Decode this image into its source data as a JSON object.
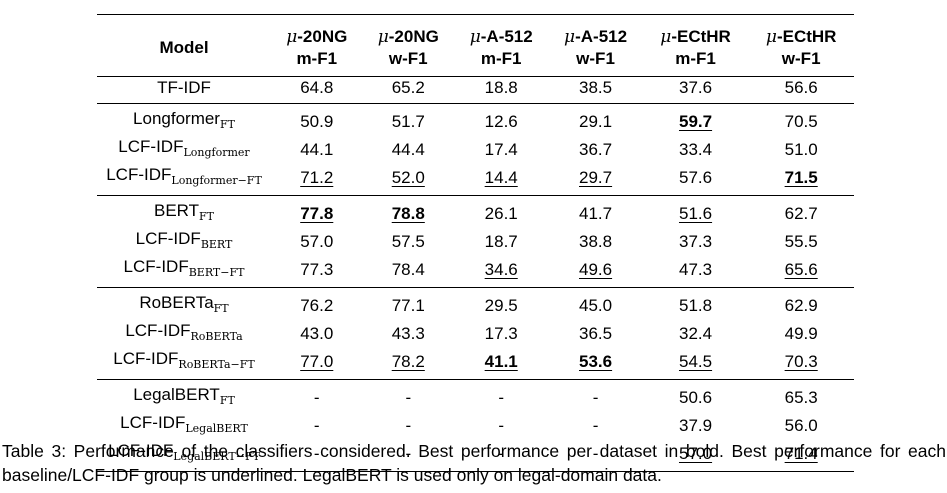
{
  "table": {
    "model_header": "Model",
    "columns": [
      {
        "mu": "μ",
        "dataset": "-20NG",
        "metric": "m-F1"
      },
      {
        "mu": "μ",
        "dataset": "-20NG",
        "metric": "w-F1"
      },
      {
        "mu": "μ",
        "dataset": "-A-512",
        "metric": "m-F1"
      },
      {
        "mu": "μ",
        "dataset": "-A-512",
        "metric": "w-F1"
      },
      {
        "mu": "μ",
        "dataset": "-ECtHR",
        "metric": "m-F1"
      },
      {
        "mu": "μ",
        "dataset": "-ECtHR",
        "metric": "w-F1"
      }
    ],
    "rows": [
      {
        "name": "TF-IDF",
        "sub": "",
        "values": [
          "64.8",
          "65.2",
          "18.8",
          "38.5",
          "37.6",
          "56.6"
        ]
      },
      {
        "name": "Longformer",
        "sub": "FT",
        "values": [
          "50.9",
          "51.7",
          "12.6",
          "29.1",
          "59.7",
          "70.5"
        ]
      },
      {
        "name": "LCF-IDF",
        "sub": "Longformer",
        "values": [
          "44.1",
          "44.4",
          "17.4",
          "36.7",
          "33.4",
          "51.0"
        ]
      },
      {
        "name": "LCF-IDF",
        "sub": "Longformer−FT",
        "values": [
          "71.2",
          "52.0",
          "14.4",
          "29.7",
          "57.6",
          "71.5"
        ]
      },
      {
        "name": "BERT",
        "sub": "FT",
        "values": [
          "77.8",
          "78.8",
          "26.1",
          "41.7",
          "51.6",
          "62.7"
        ]
      },
      {
        "name": "LCF-IDF",
        "sub": "BERT",
        "values": [
          "57.0",
          "57.5",
          "18.7",
          "38.8",
          "37.3",
          "55.5"
        ]
      },
      {
        "name": "LCF-IDF",
        "sub": "BERT−FT",
        "values": [
          "77.3",
          "78.4",
          "34.6",
          "49.6",
          "47.3",
          "65.6"
        ]
      },
      {
        "name": "RoBERTa",
        "sub": "FT",
        "values": [
          "76.2",
          "77.1",
          "29.5",
          "45.0",
          "51.8",
          "62.9"
        ]
      },
      {
        "name": "LCF-IDF",
        "sub": "RoBERTa",
        "values": [
          "43.0",
          "43.3",
          "17.3",
          "36.5",
          "32.4",
          "49.9"
        ]
      },
      {
        "name": "LCF-IDF",
        "sub": "RoBERTa−FT",
        "values": [
          "77.0",
          "78.2",
          "41.1",
          "53.6",
          "54.5",
          "70.3"
        ]
      },
      {
        "name": "LegalBERT",
        "sub": "FT",
        "values": [
          "-",
          "-",
          "-",
          "-",
          "50.6",
          "65.3"
        ]
      },
      {
        "name": "LCF-IDF",
        "sub": "LegalBERT",
        "values": [
          "-",
          "-",
          "-",
          "-",
          "37.9",
          "56.0"
        ]
      },
      {
        "name": "LCF-IDF",
        "sub": "LegalBERT−FT",
        "values": [
          "-",
          "-",
          "-",
          "-",
          "57.0",
          "71.4"
        ]
      }
    ]
  },
  "caption": "Table 3: Performance of the classifiers considered. Best performance per dataset in bold. Best performance for each baseline/LCF-IDF group is underlined. LegalBERT is used only on legal-domain data."
}
